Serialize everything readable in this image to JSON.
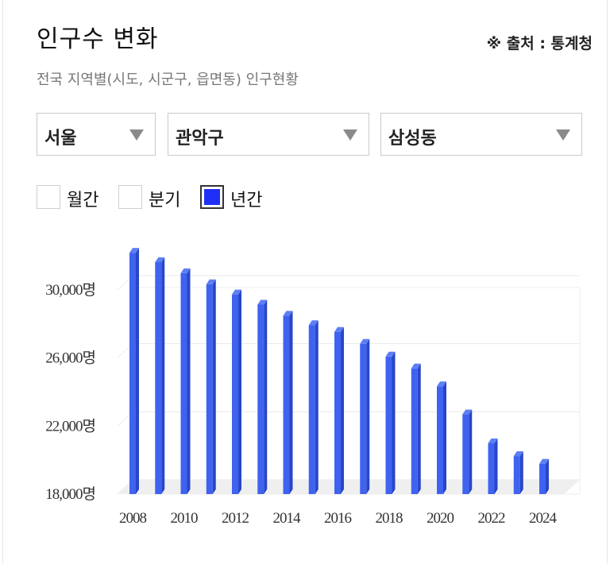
{
  "header": {
    "title": "인구수 변화",
    "source": "※ 출처 : 통계청",
    "subtitle": "전국 지역별(시도, 시군구, 읍면동) 인구현황"
  },
  "filters": {
    "sido": "서울",
    "sigungu": "관악구",
    "dong": "삼성동"
  },
  "period_options": [
    {
      "label": "월간",
      "checked": false
    },
    {
      "label": "분기",
      "checked": false
    },
    {
      "label": "년간",
      "checked": true
    }
  ],
  "colors": {
    "bar_front": "#3f63f0",
    "bar_side": "#2846c8",
    "bar_top": "#5d7ff5",
    "checked": "#1f2ff5"
  },
  "chart_data": {
    "type": "bar",
    "categories": [
      "2008",
      "2009",
      "2010",
      "2011",
      "2012",
      "2013",
      "2014",
      "2015",
      "2016",
      "2017",
      "2018",
      "2019",
      "2020",
      "2021",
      "2022",
      "2023",
      "2024"
    ],
    "values": [
      32000,
      31450,
      30800,
      30150,
      29550,
      28950,
      28300,
      27750,
      27350,
      26650,
      25900,
      25200,
      24150,
      22500,
      20800,
      20050,
      19600
    ],
    "x_tick_labels": [
      "2008",
      "2010",
      "2012",
      "2014",
      "2016",
      "2018",
      "2020",
      "2022",
      "2024"
    ],
    "y_tick_labels": [
      "30,000명",
      "26,000명",
      "22,000명",
      "18,000명"
    ],
    "y_ticks": [
      30000,
      26000,
      22000,
      18000
    ],
    "ylim": [
      18000,
      31000
    ],
    "grid": true
  }
}
